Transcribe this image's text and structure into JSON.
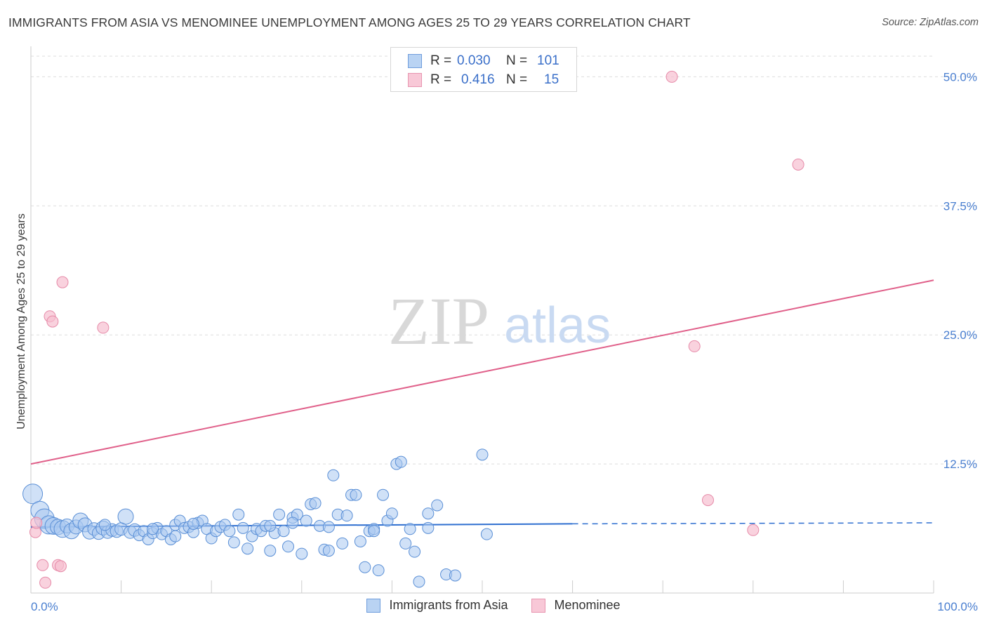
{
  "header": {
    "title": "IMMIGRANTS FROM ASIA VS MENOMINEE UNEMPLOYMENT AMONG AGES 25 TO 29 YEARS CORRELATION CHART",
    "source": "Source: ZipAtlas.com"
  },
  "legend": {
    "rows": [
      {
        "r_label": "R =",
        "r_value": "0.030",
        "n_label": "N =",
        "n_value": "101"
      },
      {
        "r_label": "R =",
        "r_value": "0.416",
        "n_label": "N =",
        "n_value": "15"
      }
    ]
  },
  "bottom_legend": {
    "series1": "Immigrants from Asia",
    "series2": "Menominee"
  },
  "watermark": {
    "part1": "ZIP",
    "part2": "atlas"
  },
  "colors": {
    "blue_fill": "#a9c8f0",
    "blue_stroke": "#5a8fd6",
    "blue_line": "#2f6fd0",
    "pink_fill": "#f6bfd0",
    "pink_stroke": "#e68aa8",
    "pink_line": "#e0608a",
    "axis_text": "#4a7fd0",
    "grid": "#dddddd"
  },
  "chart_data": {
    "type": "scatter",
    "title": "IMMIGRANTS FROM ASIA VS MENOMINEE UNEMPLOYMENT AMONG AGES 25 TO 29 YEARS CORRELATION CHART",
    "xlabel": "",
    "ylabel": "Unemployment Among Ages 25 to 29 years",
    "xlim": [
      0,
      100
    ],
    "ylim": [
      0,
      52
    ],
    "x_tick_labels": [
      "0.0%",
      "100.0%"
    ],
    "y_ticks": [
      12.5,
      25.0,
      37.5,
      50.0
    ],
    "y_tick_labels": [
      "12.5%",
      "25.0%",
      "37.5%",
      "50.0%"
    ],
    "series": [
      {
        "name": "Immigrants from Asia",
        "r": 0.03,
        "n": 101,
        "trend": {
          "x0": 0,
          "y0": 6.4,
          "x1": 60,
          "y1": 6.7,
          "dashed_to_x": 100,
          "dashed_y1": 6.8
        },
        "points": [
          [
            0.2,
            9.6,
            14
          ],
          [
            1.0,
            8.0,
            13
          ],
          [
            1.5,
            7.2,
            14
          ],
          [
            2.0,
            6.6,
            13
          ],
          [
            2.5,
            6.5,
            12
          ],
          [
            3.0,
            6.4,
            11
          ],
          [
            3.5,
            6.2,
            12
          ],
          [
            4.0,
            6.5,
            10
          ],
          [
            4.5,
            6.0,
            11
          ],
          [
            5.0,
            6.4,
            10
          ],
          [
            5.5,
            7.0,
            11
          ],
          [
            6.0,
            6.6,
            10
          ],
          [
            6.5,
            5.9,
            10
          ],
          [
            7.0,
            6.2,
            9
          ],
          [
            7.5,
            5.8,
            9
          ],
          [
            8.0,
            6.3,
            10
          ],
          [
            8.5,
            5.9,
            9
          ],
          [
            9.0,
            6.1,
            9
          ],
          [
            9.5,
            6.0,
            9
          ],
          [
            10.0,
            6.2,
            9
          ],
          [
            10.5,
            7.4,
            11
          ],
          [
            11.0,
            5.9,
            9
          ],
          [
            11.5,
            6.1,
            9
          ],
          [
            12.0,
            5.6,
            8
          ],
          [
            12.5,
            6.0,
            8
          ],
          [
            13.0,
            5.2,
            8
          ],
          [
            13.5,
            5.8,
            8
          ],
          [
            14.0,
            6.3,
            8
          ],
          [
            14.5,
            5.7,
            8
          ],
          [
            15.0,
            6.0,
            8
          ],
          [
            15.5,
            5.2,
            8
          ],
          [
            16.0,
            6.6,
            8
          ],
          [
            16.5,
            7.0,
            8
          ],
          [
            17.0,
            6.3,
            8
          ],
          [
            17.5,
            6.4,
            8
          ],
          [
            18.0,
            5.9,
            8
          ],
          [
            18.5,
            6.8,
            8
          ],
          [
            19.0,
            7.0,
            8
          ],
          [
            19.5,
            6.2,
            8
          ],
          [
            20.0,
            5.3,
            8
          ],
          [
            20.5,
            6.0,
            8
          ],
          [
            21.0,
            6.4,
            8
          ],
          [
            21.5,
            6.6,
            8
          ],
          [
            22.0,
            6.0,
            8
          ],
          [
            22.5,
            4.9,
            8
          ],
          [
            23.0,
            7.6,
            8
          ],
          [
            23.5,
            6.3,
            8
          ],
          [
            24.0,
            4.3,
            8
          ],
          [
            24.5,
            5.5,
            8
          ],
          [
            25.0,
            6.2,
            8
          ],
          [
            25.5,
            6.0,
            8
          ],
          [
            26.0,
            6.5,
            8
          ],
          [
            26.5,
            4.1,
            8
          ],
          [
            27.0,
            5.8,
            8
          ],
          [
            27.5,
            7.6,
            8
          ],
          [
            28.0,
            6.0,
            8
          ],
          [
            28.5,
            4.5,
            8
          ],
          [
            29.0,
            7.3,
            8
          ],
          [
            29.5,
            7.6,
            8
          ],
          [
            30.0,
            3.8,
            8
          ],
          [
            30.5,
            7.0,
            8
          ],
          [
            31.0,
            8.6,
            8
          ],
          [
            31.5,
            8.7,
            8
          ],
          [
            32.0,
            6.5,
            8
          ],
          [
            32.5,
            4.2,
            8
          ],
          [
            33.0,
            4.1,
            8
          ],
          [
            33.5,
            11.4,
            8
          ],
          [
            34.0,
            7.6,
            8
          ],
          [
            34.5,
            4.8,
            8
          ],
          [
            35.0,
            7.5,
            8
          ],
          [
            35.5,
            9.5,
            8
          ],
          [
            36.0,
            9.5,
            8
          ],
          [
            36.5,
            5.0,
            8
          ],
          [
            37.0,
            2.5,
            8
          ],
          [
            37.5,
            6.0,
            8
          ],
          [
            38.0,
            6.2,
            8
          ],
          [
            38.5,
            2.2,
            8
          ],
          [
            39.0,
            9.5,
            8
          ],
          [
            39.5,
            7.0,
            8
          ],
          [
            40.0,
            7.7,
            8
          ],
          [
            40.5,
            12.5,
            8
          ],
          [
            41.0,
            12.7,
            8
          ],
          [
            41.5,
            4.8,
            8
          ],
          [
            42.0,
            6.2,
            8
          ],
          [
            42.5,
            4.0,
            8
          ],
          [
            43.0,
            1.1,
            8
          ],
          [
            44.0,
            7.7,
            8
          ],
          [
            45.0,
            8.5,
            8
          ],
          [
            46.0,
            1.8,
            8
          ],
          [
            47.0,
            1.7,
            8
          ],
          [
            50.0,
            13.4,
            8
          ],
          [
            50.5,
            5.7,
            8
          ],
          [
            8.2,
            6.6,
            8
          ],
          [
            13.5,
            6.2,
            8
          ],
          [
            18.0,
            6.7,
            8
          ],
          [
            26.5,
            6.5,
            8
          ],
          [
            33.0,
            6.4,
            8
          ],
          [
            38.0,
            6.0,
            8
          ],
          [
            44.0,
            6.3,
            8
          ],
          [
            29.0,
            6.8,
            8
          ],
          [
            16.0,
            5.5,
            8
          ]
        ]
      },
      {
        "name": "Menominee",
        "r": 0.416,
        "n": 15,
        "trend": {
          "x0": 0,
          "y0": 12.5,
          "x1": 100,
          "y1": 30.3
        },
        "points": [
          [
            0.5,
            5.9,
            8
          ],
          [
            0.6,
            6.8,
            8
          ],
          [
            1.3,
            2.7,
            8
          ],
          [
            1.6,
            1.0,
            8
          ],
          [
            2.1,
            26.8,
            8
          ],
          [
            2.4,
            26.3,
            8
          ],
          [
            3.0,
            2.7,
            8
          ],
          [
            3.3,
            2.6,
            8
          ],
          [
            3.5,
            30.1,
            8
          ],
          [
            8.0,
            25.7,
            8
          ],
          [
            71.0,
            50.0,
            8
          ],
          [
            85.0,
            41.5,
            8
          ],
          [
            73.5,
            23.9,
            8
          ],
          [
            75.0,
            9.0,
            8
          ],
          [
            80.0,
            6.1,
            8
          ]
        ]
      }
    ]
  }
}
